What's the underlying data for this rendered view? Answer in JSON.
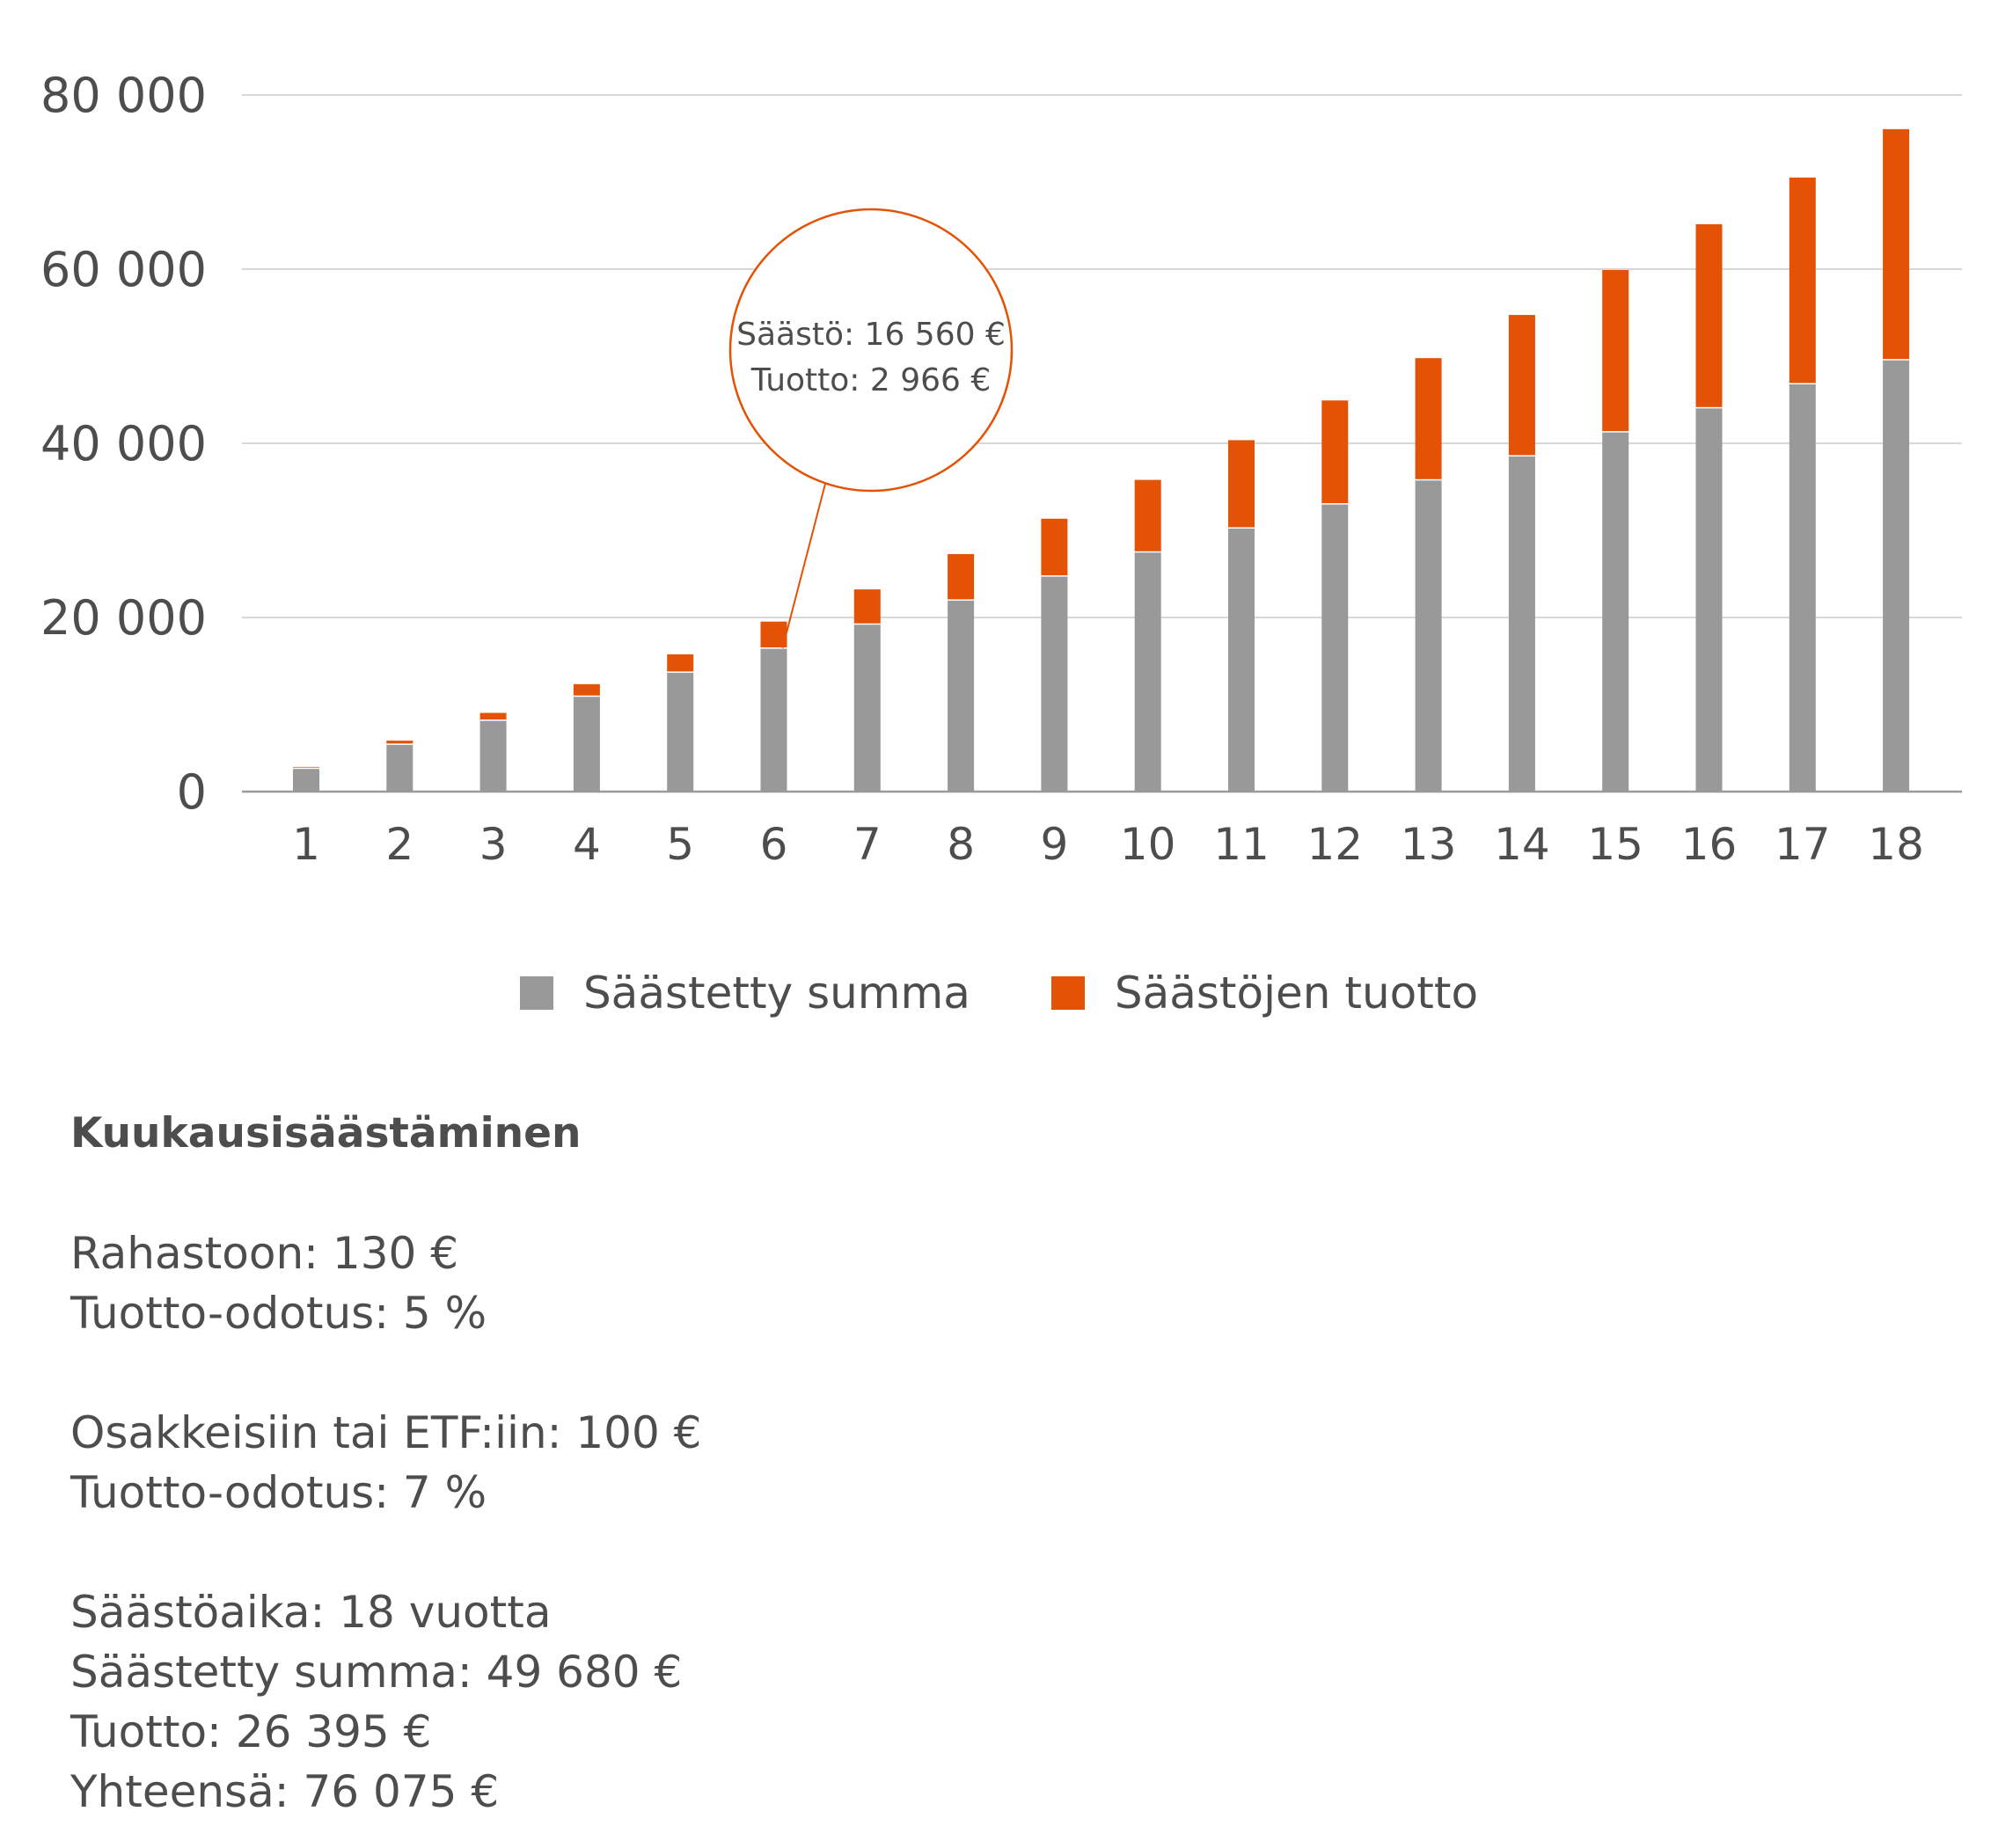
{
  "chart_data": {
    "type": "bar",
    "stacked": true,
    "categories": [
      "1",
      "2",
      "3",
      "4",
      "5",
      "6",
      "7",
      "8",
      "9",
      "10",
      "11",
      "12",
      "13",
      "14",
      "15",
      "16",
      "17",
      "18"
    ],
    "series": [
      {
        "name": "Säästetty summa",
        "color": "#999999",
        "values": [
          2760,
          5520,
          8280,
          11040,
          13800,
          16560,
          19320,
          22080,
          24840,
          27600,
          30360,
          33120,
          35880,
          38640,
          41400,
          44160,
          46920,
          49680
        ]
      },
      {
        "name": "Säästöjen tuotto",
        "color": "#e35205",
        "values": [
          80,
          330,
          760,
          1300,
          1970,
          2966,
          3900,
          5200,
          6500,
          8200,
          10000,
          11800,
          13900,
          16100,
          18500,
          21000,
          23600,
          26395
        ]
      }
    ],
    "y_ticks": [
      "0",
      "20 000",
      "40 000",
      "60 000",
      "80 000"
    ],
    "ylim": [
      0,
      80000
    ],
    "grid": true,
    "legend_position": "bottom-center",
    "annotation": {
      "category": "6",
      "lines": [
        "Säästö: 16 560 €",
        "Tuotto: 2 966 €"
      ],
      "color": "#e35205"
    }
  },
  "info": {
    "heading": "Kuukausisäästäminen",
    "groups": [
      [
        "Rahastoon: 130 €",
        "Tuotto-odotus: 5 %"
      ],
      [
        "Osakkeisiin tai ETF:iin: 100 €",
        "Tuotto-odotus: 7 %"
      ],
      [
        "Säästöaika: 18 vuotta",
        "Säästetty summa: 49 680 €",
        "Tuotto: 26 395 €",
        "Yhteensä: 76 075 €"
      ]
    ]
  }
}
